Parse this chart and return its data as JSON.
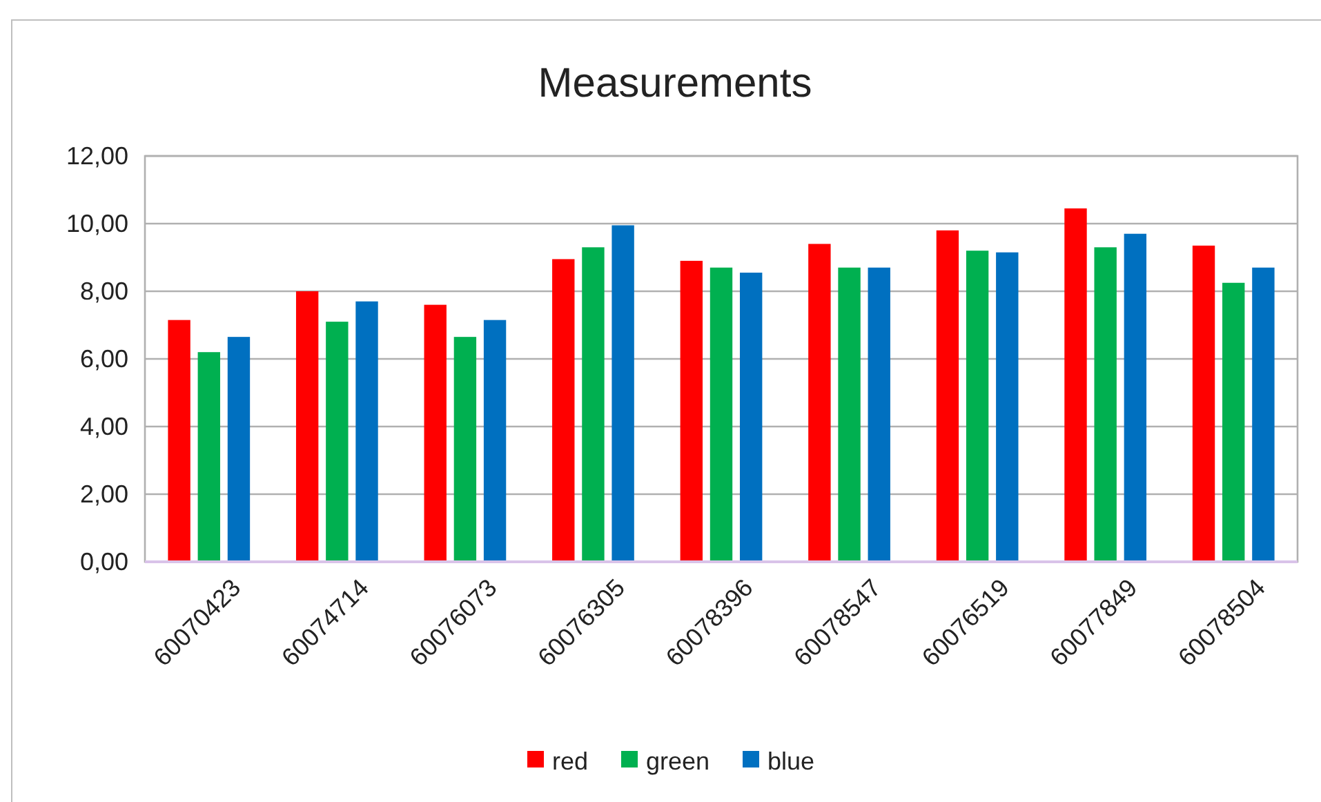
{
  "chart_data": {
    "type": "bar",
    "title": "Measurements",
    "categories": [
      "60070423",
      "60074714",
      "60076073",
      "60076305",
      "60078396",
      "60078547",
      "60076519",
      "60077849",
      "60078504"
    ],
    "series": [
      {
        "name": "red",
        "color": "#ff0000",
        "values": [
          7.15,
          8.0,
          7.6,
          8.95,
          8.9,
          9.4,
          9.8,
          10.45,
          9.35
        ]
      },
      {
        "name": "green",
        "color": "#00b050",
        "values": [
          6.2,
          7.1,
          6.65,
          9.3,
          8.7,
          8.7,
          9.2,
          9.3,
          8.25
        ]
      },
      {
        "name": "blue",
        "color": "#0070c0",
        "values": [
          6.65,
          7.7,
          7.15,
          9.95,
          8.55,
          8.7,
          9.15,
          9.7,
          8.7
        ]
      }
    ],
    "ylim": [
      0,
      12
    ],
    "yticks": [
      {
        "value": 0,
        "label": "0,00"
      },
      {
        "value": 2,
        "label": "2,00"
      },
      {
        "value": 4,
        "label": "4,00"
      },
      {
        "value": 6,
        "label": "6,00"
      },
      {
        "value": 8,
        "label": "8,00"
      },
      {
        "value": 10,
        "label": "10,00"
      },
      {
        "value": 12,
        "label": "12,00"
      }
    ],
    "grid": "y",
    "legend": "bottom"
  }
}
